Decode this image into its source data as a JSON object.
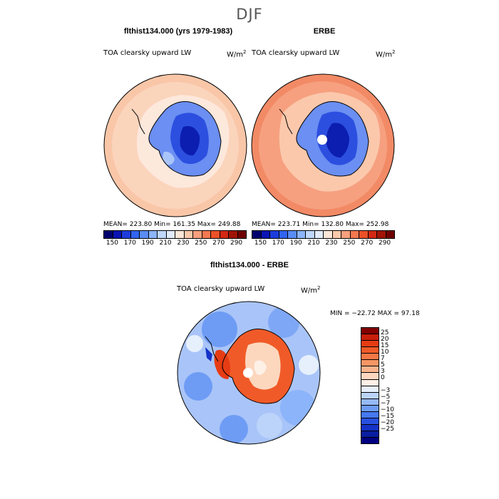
{
  "season": "DJF",
  "panels": [
    {
      "title": "flthist134.000 (yrs 1979-1983)",
      "label": "TOA clearsky upward LW",
      "stats": "MEAN= 223.80   Min= 161.35   Max= 249.88"
    },
    {
      "title": "ERBE",
      "label": "TOA clearsky upward LW",
      "stats": "MEAN= 223.71   Min= 132.80   Max= 252.98"
    },
    {
      "title": "flthist134.000 - ERBE",
      "label": "TOA clearsky upward LW",
      "stats": "MIN = −22.72 MAX =  97.18"
    }
  ],
  "units": {
    "base": "W/m",
    "exp": "2"
  },
  "colorbar_top": {
    "ticks": [
      "150",
      "170",
      "190",
      "210",
      "230",
      "250",
      "270",
      "290"
    ],
    "colors": [
      "#00006e",
      "#0a14b4",
      "#1e3cdc",
      "#3264f0",
      "#5a8cf5",
      "#8cb4fa",
      "#bed7fa",
      "#e1ebfa",
      "#fce6d7",
      "#fbc8aa",
      "#f8a07d",
      "#f47850",
      "#ec5028",
      "#d22814",
      "#a01405",
      "#6e0000"
    ]
  },
  "colorbar_diff": {
    "ticks": [
      "25",
      "20",
      "15",
      "10",
      "7",
      "5",
      "3",
      "0",
      "−3",
      "−5",
      "−7",
      "−10",
      "−15",
      "−20",
      "−25"
    ],
    "colors": [
      "#820000",
      "#c81e0a",
      "#e63c14",
      "#f05a28",
      "#f57846",
      "#f89664",
      "#fab48c",
      "#fcd7be",
      "#fdf0e6",
      "#e6f0fc",
      "#bcd4fa",
      "#96b9f8",
      "#6e9cf5",
      "#4678f0",
      "#2850e0",
      "#1432c8",
      "#0a1ea0",
      "#000082"
    ]
  }
}
